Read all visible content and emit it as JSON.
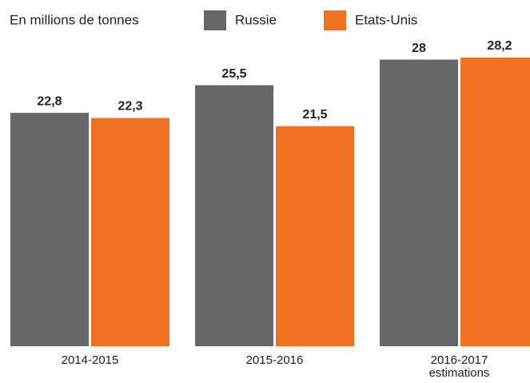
{
  "chart_data": {
    "type": "bar",
    "subtitle": "En millions de tonnes",
    "categories": [
      "2014-2015",
      "2015-2016",
      "2016-2017\nestimations"
    ],
    "series": [
      {
        "name": "Russie",
        "color": "#666666",
        "values": [
          22.8,
          25.5,
          28
        ],
        "value_labels": [
          "22,8",
          "25,5",
          "28"
        ]
      },
      {
        "name": "Etats-Unis",
        "color": "#f07122",
        "values": [
          22.3,
          21.5,
          28.2
        ],
        "value_labels": [
          "22,3",
          "21,5",
          "28,2"
        ]
      }
    ]
  }
}
